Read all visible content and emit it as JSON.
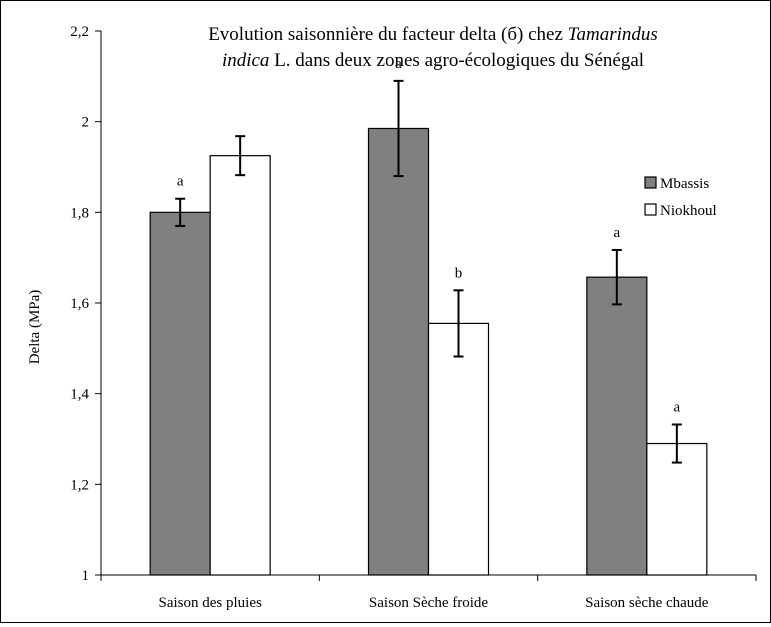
{
  "chart_data": {
    "type": "bar",
    "title_line1_prefix": "Evolution saisonnière du facteur delta (б) chez ",
    "title_line1_italic": "Tamarindus",
    "title_line2_italic": "indica",
    "title_line2_suffix": " L. dans deux zones agro-écologiques du Sénégal",
    "ylabel": "Delta (MPa)",
    "xlabel": "",
    "ylim": [
      1,
      2.2
    ],
    "yticks": [
      "1",
      "1,2",
      "1,4",
      "1,6",
      "1,8",
      "2",
      "2,2"
    ],
    "categories": [
      "Saison des pluies",
      "Saison Sèche froide",
      "Saison sèche chaude"
    ],
    "series": [
      {
        "name": "Mbassis",
        "color": "#808080",
        "values": [
          1.8,
          1.985,
          1.657
        ],
        "errors": [
          0.03,
          0.105,
          0.06
        ]
      },
      {
        "name": "Niokhoul",
        "color": "#ffffff",
        "values": [
          1.925,
          1.555,
          1.29
        ],
        "errors": [
          0.043,
          0.073,
          0.042
        ]
      }
    ],
    "significance": [
      {
        "category": 0,
        "series": 0,
        "label": "a"
      },
      {
        "category": 1,
        "series": 0,
        "label": "a"
      },
      {
        "category": 1,
        "series": 1,
        "label": "b"
      },
      {
        "category": 2,
        "series": 0,
        "label": "a"
      },
      {
        "category": 2,
        "series": 1,
        "label": "a"
      }
    ],
    "grid": false,
    "legend_position": "right"
  }
}
